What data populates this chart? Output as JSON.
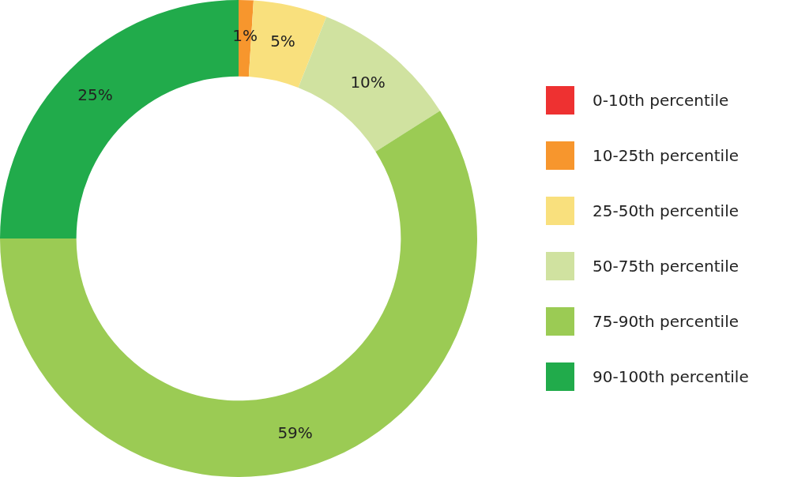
{
  "chart_data": {
    "type": "donut",
    "categories": [
      "0-10th percentile",
      "10-25th percentile",
      "25-50th percentile",
      "50-75th percentile",
      "75-90th percentile",
      "90-100th percentile"
    ],
    "values": [
      0,
      1,
      5,
      10,
      59,
      25
    ],
    "value_labels": [
      null,
      "1%",
      "5%",
      "10%",
      "59%",
      "25%"
    ],
    "colors": [
      "#ee3131",
      "#f7962d",
      "#f9e07d",
      "#d0e2a0",
      "#9bcb54",
      "#21ab4b"
    ],
    "legend": "right"
  }
}
